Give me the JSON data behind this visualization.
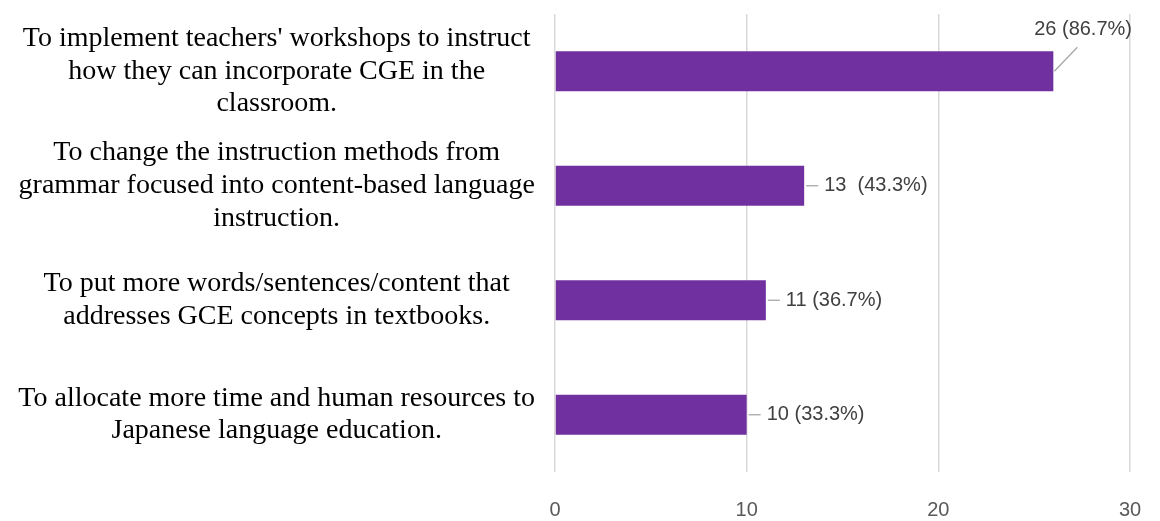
{
  "chart_data": {
    "type": "bar",
    "orientation": "horizontal",
    "categories": [
      "To implement teachers' workshops to instruct how they can incorporate CGE in the classroom.",
      "To change the instruction methods from grammar focused into content-based language instruction.",
      "To put more words/sentences/content that addresses GCE concepts in textbooks.",
      "To allocate more time and human resources to Japanese language education."
    ],
    "values": [
      26,
      13,
      11,
      10
    ],
    "color": "#7030a0",
    "value_labels": [
      "26 (86.7%)",
      "13  (43.3%)",
      "11 (36.7%)",
      "10 (33.3%)"
    ],
    "xlim": [
      0,
      30
    ],
    "xticks": [
      0,
      10,
      20,
      30
    ],
    "grid": "x"
  }
}
